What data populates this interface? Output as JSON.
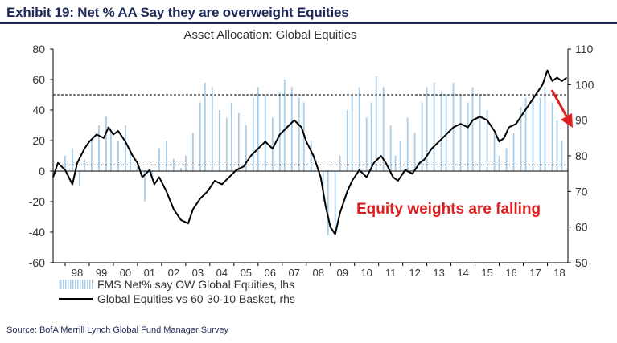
{
  "header": {
    "title": "Exhibit 19: Net % AA Say they are overweight Equities"
  },
  "footer": {
    "source": "Source:  BofA Merrill Lynch Global Fund Manager Survey"
  },
  "colors": {
    "bars": "#a8cde8",
    "line": "#000000",
    "annotation": "#e02020",
    "title": "#1f2a5a"
  },
  "chart_data": {
    "type": "bar",
    "title": "Asset Allocation: Global Equities",
    "x_tick_labels": [
      "98",
      "99",
      "00",
      "01",
      "02",
      "03",
      "04",
      "05",
      "06",
      "07",
      "08",
      "09",
      "10",
      "11",
      "12",
      "13",
      "14",
      "15",
      "16",
      "17",
      "18"
    ],
    "x_range": [
      1997.5,
      2018.85
    ],
    "y_left": {
      "ticks": [
        -60,
        -40,
        -20,
        0,
        20,
        40,
        60,
        80
      ],
      "lim": [
        -60,
        80
      ]
    },
    "y_right": {
      "ticks": [
        50,
        60,
        70,
        80,
        90,
        100,
        110
      ],
      "lim": [
        50,
        110
      ]
    },
    "reference_lines": {
      "lhs_zero": 0,
      "lhs_lower_dashed": 4,
      "lhs_upper_dashed": 50
    },
    "annotation": {
      "text": "Equity weights are falling"
    },
    "series": [
      {
        "name": "FMS Net% say OW Global Equities, lhs",
        "kind": "bar",
        "axis": "lhs",
        "points": [
          [
            1998.0,
            10
          ],
          [
            1998.3,
            15
          ],
          [
            1998.6,
            -10
          ],
          [
            1998.8,
            8
          ],
          [
            1999.1,
            20
          ],
          [
            1999.4,
            30
          ],
          [
            1999.7,
            36
          ],
          [
            1999.9,
            25
          ],
          [
            2000.2,
            20
          ],
          [
            2000.5,
            30
          ],
          [
            2000.7,
            15
          ],
          [
            2001.0,
            5
          ],
          [
            2001.3,
            -20
          ],
          [
            2001.6,
            -5
          ],
          [
            2001.9,
            15
          ],
          [
            2002.2,
            20
          ],
          [
            2002.5,
            8
          ],
          [
            2002.8,
            2
          ],
          [
            2003.0,
            10
          ],
          [
            2003.3,
            25
          ],
          [
            2003.6,
            45
          ],
          [
            2003.8,
            58
          ],
          [
            2004.1,
            55
          ],
          [
            2004.4,
            40
          ],
          [
            2004.7,
            35
          ],
          [
            2004.9,
            45
          ],
          [
            2005.2,
            38
          ],
          [
            2005.5,
            30
          ],
          [
            2005.8,
            48
          ],
          [
            2006.0,
            55
          ],
          [
            2006.3,
            50
          ],
          [
            2006.6,
            35
          ],
          [
            2006.9,
            52
          ],
          [
            2007.1,
            60
          ],
          [
            2007.4,
            55
          ],
          [
            2007.7,
            48
          ],
          [
            2007.9,
            45
          ],
          [
            2008.2,
            20
          ],
          [
            2008.5,
            0
          ],
          [
            2008.7,
            -20
          ],
          [
            2008.9,
            -42
          ],
          [
            2009.2,
            -38
          ],
          [
            2009.4,
            10
          ],
          [
            2009.7,
            40
          ],
          [
            2009.9,
            50
          ],
          [
            2010.2,
            55
          ],
          [
            2010.5,
            35
          ],
          [
            2010.7,
            45
          ],
          [
            2010.9,
            62
          ],
          [
            2011.2,
            55
          ],
          [
            2011.5,
            30
          ],
          [
            2011.7,
            10
          ],
          [
            2011.9,
            20
          ],
          [
            2012.2,
            35
          ],
          [
            2012.5,
            25
          ],
          [
            2012.8,
            45
          ],
          [
            2013.0,
            55
          ],
          [
            2013.3,
            58
          ],
          [
            2013.6,
            52
          ],
          [
            2013.8,
            50
          ],
          [
            2014.1,
            58
          ],
          [
            2014.4,
            50
          ],
          [
            2014.7,
            45
          ],
          [
            2014.9,
            55
          ],
          [
            2015.2,
            50
          ],
          [
            2015.5,
            40
          ],
          [
            2015.8,
            25
          ],
          [
            2016.0,
            10
          ],
          [
            2016.3,
            15
          ],
          [
            2016.6,
            25
          ],
          [
            2016.9,
            42
          ],
          [
            2017.1,
            48
          ],
          [
            2017.4,
            50
          ],
          [
            2017.7,
            48
          ],
          [
            2017.9,
            55
          ],
          [
            2018.2,
            45
          ],
          [
            2018.4,
            33
          ],
          [
            2018.6,
            20
          ]
        ]
      },
      {
        "name": "Global Equities vs 60-30-10 Basket, rhs",
        "kind": "line",
        "axis": "rhs",
        "points": [
          [
            1997.5,
            74
          ],
          [
            1997.7,
            78
          ],
          [
            1998.0,
            76
          ],
          [
            1998.3,
            72
          ],
          [
            1998.5,
            78
          ],
          [
            1998.8,
            82
          ],
          [
            1999.0,
            84
          ],
          [
            1999.3,
            86
          ],
          [
            1999.6,
            85
          ],
          [
            1999.8,
            88
          ],
          [
            2000.0,
            86
          ],
          [
            2000.2,
            87
          ],
          [
            2000.5,
            84
          ],
          [
            2000.8,
            80
          ],
          [
            2001.0,
            78
          ],
          [
            2001.2,
            74
          ],
          [
            2001.5,
            76
          ],
          [
            2001.7,
            72
          ],
          [
            2001.9,
            74
          ],
          [
            2002.2,
            70
          ],
          [
            2002.5,
            65
          ],
          [
            2002.8,
            62
          ],
          [
            2003.1,
            61
          ],
          [
            2003.3,
            65
          ],
          [
            2003.6,
            68
          ],
          [
            2003.9,
            70
          ],
          [
            2004.2,
            73
          ],
          [
            2004.5,
            72
          ],
          [
            2004.8,
            74
          ],
          [
            2005.1,
            76
          ],
          [
            2005.4,
            77
          ],
          [
            2005.7,
            80
          ],
          [
            2006.0,
            82
          ],
          [
            2006.3,
            84
          ],
          [
            2006.6,
            82
          ],
          [
            2006.9,
            86
          ],
          [
            2007.2,
            88
          ],
          [
            2007.5,
            90
          ],
          [
            2007.8,
            88
          ],
          [
            2008.0,
            84
          ],
          [
            2008.3,
            80
          ],
          [
            2008.6,
            74
          ],
          [
            2008.8,
            66
          ],
          [
            2009.0,
            60
          ],
          [
            2009.2,
            58
          ],
          [
            2009.4,
            64
          ],
          [
            2009.7,
            70
          ],
          [
            2009.9,
            73
          ],
          [
            2010.2,
            76
          ],
          [
            2010.5,
            74
          ],
          [
            2010.8,
            78
          ],
          [
            2011.1,
            80
          ],
          [
            2011.3,
            78
          ],
          [
            2011.6,
            74
          ],
          [
            2011.8,
            73
          ],
          [
            2012.1,
            76
          ],
          [
            2012.4,
            75
          ],
          [
            2012.7,
            78
          ],
          [
            2012.9,
            79
          ],
          [
            2013.2,
            82
          ],
          [
            2013.5,
            84
          ],
          [
            2013.8,
            86
          ],
          [
            2014.1,
            88
          ],
          [
            2014.4,
            89
          ],
          [
            2014.7,
            88
          ],
          [
            2014.9,
            90
          ],
          [
            2015.2,
            91
          ],
          [
            2015.5,
            90
          ],
          [
            2015.8,
            87
          ],
          [
            2016.0,
            84
          ],
          [
            2016.2,
            85
          ],
          [
            2016.4,
            88
          ],
          [
            2016.7,
            89
          ],
          [
            2016.9,
            91
          ],
          [
            2017.2,
            94
          ],
          [
            2017.5,
            97
          ],
          [
            2017.8,
            100
          ],
          [
            2018.0,
            104
          ],
          [
            2018.2,
            101
          ],
          [
            2018.4,
            102
          ],
          [
            2018.6,
            101
          ],
          [
            2018.8,
            102
          ]
        ]
      }
    ]
  }
}
